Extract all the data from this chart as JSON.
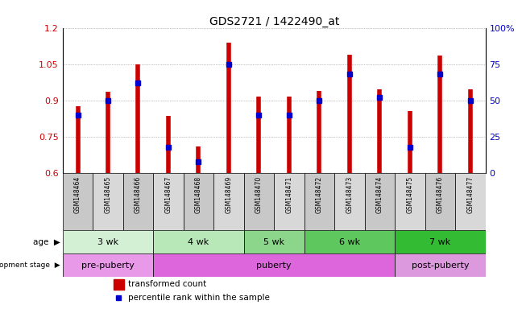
{
  "title": "GDS2721 / 1422490_at",
  "samples": [
    "GSM148464",
    "GSM148465",
    "GSM148466",
    "GSM148467",
    "GSM148468",
    "GSM148469",
    "GSM148470",
    "GSM148471",
    "GSM148472",
    "GSM148473",
    "GSM148474",
    "GSM148475",
    "GSM148476",
    "GSM148477"
  ],
  "transformed_count": [
    0.875,
    0.935,
    1.05,
    0.835,
    0.71,
    1.14,
    0.915,
    0.915,
    0.94,
    1.09,
    0.945,
    0.855,
    1.085,
    0.945
  ],
  "percentile_pct": [
    40,
    50,
    62,
    18,
    8,
    75,
    40,
    40,
    50,
    68,
    52,
    18,
    68,
    50
  ],
  "ylim": [
    0.6,
    1.2
  ],
  "yticks_left": [
    0.6,
    0.75,
    0.9,
    1.05,
    1.2
  ],
  "yticks_right": [
    0,
    25,
    50,
    75,
    100
  ],
  "bar_color": "#cc0000",
  "dot_color": "#0000cc",
  "bar_width": 0.35,
  "age_colors": [
    "#d4f0d4",
    "#b8e8b8",
    "#8cd68c",
    "#5ec85e",
    "#33bb33"
  ],
  "dev_colors_list": [
    "#e899e8",
    "#dd66dd",
    "#dd99dd"
  ],
  "age_groups": [
    {
      "label": "3 wk",
      "start": 0,
      "end": 3
    },
    {
      "label": "4 wk",
      "start": 3,
      "end": 6
    },
    {
      "label": "5 wk",
      "start": 6,
      "end": 8
    },
    {
      "label": "6 wk",
      "start": 8,
      "end": 11
    },
    {
      "label": "7 wk",
      "start": 11,
      "end": 14
    }
  ],
  "dev_groups": [
    {
      "label": "pre-puberty",
      "start": 0,
      "end": 3
    },
    {
      "label": "puberty",
      "start": 3,
      "end": 11
    },
    {
      "label": "post-puberty",
      "start": 11,
      "end": 14
    }
  ],
  "tick_label_colors": [
    "#c0c0c0",
    "#d0d0d0"
  ],
  "legend_bar_label": "transformed count",
  "legend_dot_label": "percentile rank within the sample",
  "left_axis_color": "#cc0000",
  "right_axis_color": "#0000cc"
}
